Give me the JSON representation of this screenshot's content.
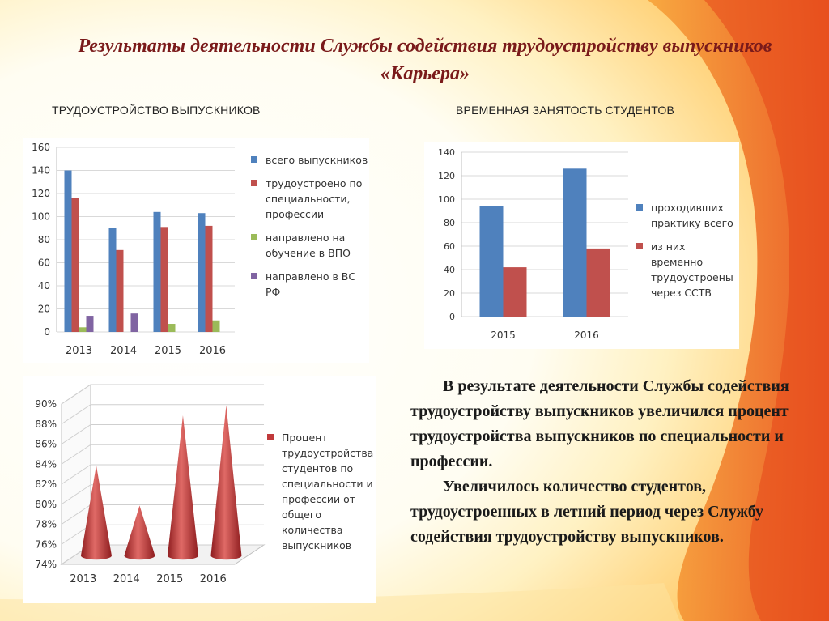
{
  "title": "Результаты деятельности Службы содействия трудоустройству выпускников «Карьера»",
  "headings": {
    "left": "ТРУДОУСТРОЙСТВО ВЫПУСКНИКОВ",
    "right": "ВРЕМЕННАЯ ЗАНЯТОСТЬ СТУДЕНТОВ"
  },
  "conclusion": {
    "p1": "В результате деятельности Службы содействия трудоустройству выпускников увеличился процент трудоустройства выпускников по специальности и профессии.",
    "p2": "Увеличилось количество студентов, трудоустроенных в летний период через Службу содействия трудоустройству выпускников."
  },
  "colors": {
    "blue": "#4f81bd",
    "red": "#c0504d",
    "green": "#9bbb59",
    "purple": "#8064a2",
    "cone": "#c0393b",
    "title": "#7a1a1a"
  },
  "chart_data": [
    {
      "type": "bar",
      "categories": [
        "2013",
        "2014",
        "2015",
        "2016"
      ],
      "ylim": [
        0,
        160
      ],
      "yticks": [
        "0",
        "20",
        "40",
        "60",
        "80",
        "100",
        "120",
        "140",
        "160"
      ],
      "grid": true,
      "legend_position": "right",
      "series": [
        {
          "name": "всего выпускников",
          "values": [
            140,
            90,
            104,
            103
          ],
          "color": "#4f81bd"
        },
        {
          "name": "трудоустроено по специальности, профессии",
          "values": [
            116,
            71,
            91,
            92
          ],
          "color": "#c0504d"
        },
        {
          "name": "направлено на обучение в ВПО",
          "values": [
            4,
            0,
            7,
            10
          ],
          "color": "#9bbb59"
        },
        {
          "name": "направлено в ВС РФ",
          "values": [
            14,
            16,
            0,
            0
          ],
          "color": "#8064a2"
        }
      ]
    },
    {
      "type": "bar",
      "categories": [
        "2015",
        "2016"
      ],
      "ylim": [
        0,
        140
      ],
      "yticks": [
        "0",
        "20",
        "40",
        "60",
        "80",
        "100",
        "120",
        "140"
      ],
      "grid": true,
      "legend_position": "right",
      "series": [
        {
          "name": "проходивших практику всего",
          "values": [
            94,
            126
          ],
          "color": "#4f81bd"
        },
        {
          "name": "из них временно трудоустроены через ССТВ",
          "values": [
            42,
            58
          ],
          "color": "#c0504d"
        }
      ]
    },
    {
      "type": "bar",
      "shape": "cone-3d",
      "categories": [
        "2013",
        "2014",
        "2015",
        "2016"
      ],
      "ylim": [
        0.74,
        0.9
      ],
      "yticks": [
        "74%",
        "76%",
        "78%",
        "80%",
        "82%",
        "84%",
        "86%",
        "88%",
        "90%"
      ],
      "grid": true,
      "legend_position": "right",
      "series": [
        {
          "name": "Процент трудоустройства студентов по специальности и профессии от общего количества выпускников",
          "values": [
            0.83,
            0.79,
            0.88,
            0.89
          ],
          "color": "#c0393b"
        }
      ]
    }
  ]
}
